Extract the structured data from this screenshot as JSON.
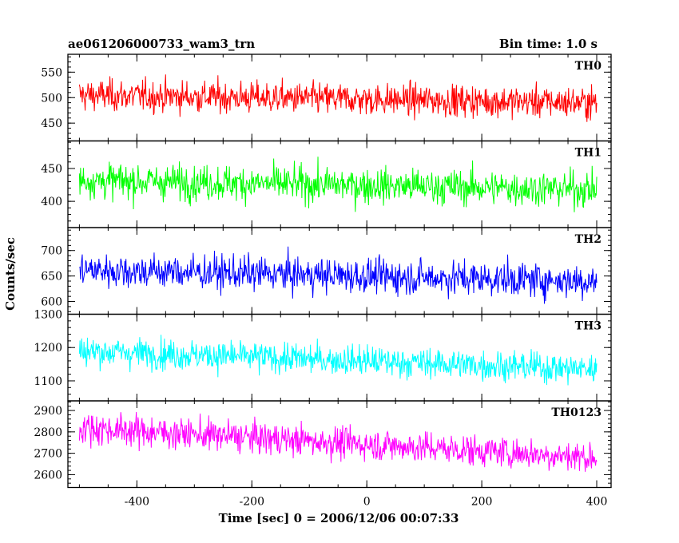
{
  "header": {
    "title": "ae061206000733_wam3_trn",
    "bin_time": "Bin time: 1.0 s"
  },
  "chart_data": {
    "type": "line",
    "ylabel": "Counts/sec",
    "xlabel": "Time [sec] 0 = 2006/12/06 00:07:33",
    "xlim": [
      -520,
      425
    ],
    "xticks": [
      -400,
      -200,
      0,
      200,
      400
    ],
    "x_range": [
      -500,
      400
    ],
    "bin_time_s": 1.0,
    "panels": [
      {
        "name": "TH0",
        "color": "#ff0000",
        "ylim": [
          415,
          585
        ],
        "yticks": [
          450,
          500,
          550
        ],
        "mean_start": 505,
        "mean_end": 490,
        "spread": 22
      },
      {
        "name": "TH1",
        "color": "#00ff00",
        "ylim": [
          360,
          492
        ],
        "yticks": [
          400,
          450
        ],
        "mean_start": 432,
        "mean_end": 418,
        "spread": 19
      },
      {
        "name": "TH2",
        "color": "#0000ff",
        "ylim": [
          575,
          745
        ],
        "yticks": [
          600,
          650,
          700
        ],
        "mean_start": 662,
        "mean_end": 640,
        "spread": 24
      },
      {
        "name": "TH3",
        "color": "#00ffff",
        "ylim": [
          1040,
          1300
        ],
        "yticks": [
          1100,
          1200,
          1300
        ],
        "mean_start": 1190,
        "mean_end": 1135,
        "spread": 32
      },
      {
        "name": "TH0123",
        "color": "#ff00ff",
        "ylim": [
          2540,
          2945
        ],
        "yticks": [
          2600,
          2700,
          2800,
          2900
        ],
        "mean_start": 2820,
        "mean_end": 2680,
        "spread": 52
      }
    ]
  }
}
